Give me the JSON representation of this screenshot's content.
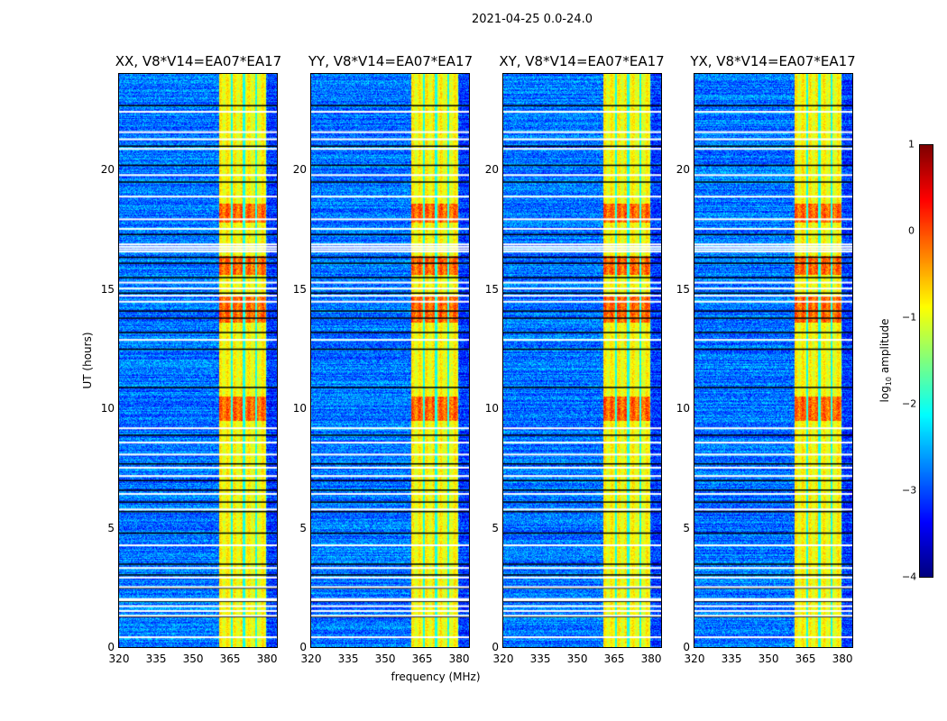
{
  "chart_data": {
    "type": "heatmap",
    "suptitle": "2021-04-25 0.0-24.0",
    "panels": [
      {
        "title": "XX, V8*V14=EA07*EA17"
      },
      {
        "title": "YY, V8*V14=EA07*EA17"
      },
      {
        "title": "XY, V8*V14=EA07*EA17"
      },
      {
        "title": "YX, V8*V14=EA07*EA17"
      }
    ],
    "xlabel": "frequency (MHz)",
    "ylabel": "UT (hours)",
    "xlim": [
      320,
      384
    ],
    "ylim": [
      0,
      24
    ],
    "xticks": [
      320,
      335,
      350,
      365,
      380
    ],
    "yticks": [
      0,
      5,
      10,
      15,
      20
    ],
    "colorbar": {
      "label_main": "log",
      "label_sub": "10",
      "label_tail": " amplitude",
      "range": [
        -4,
        1
      ],
      "ticks": [
        1,
        0,
        -1,
        -2,
        -3,
        -4
      ],
      "tick_labels": [
        "1",
        "0",
        "−1",
        "−2",
        "−3",
        "−4"
      ],
      "colormap": "jet"
    },
    "background_level": -2.8,
    "rfi_band_mhz": [
      360.5,
      379.5
    ],
    "rfi_band_gaps_mhz": [
      365.5,
      370.5,
      375.5
    ],
    "rfi_level": -0.9,
    "strong_rfi_hours": [
      [
        9.5,
        10.5
      ],
      [
        13.6,
        14.7
      ],
      [
        15.6,
        16.4
      ],
      [
        17.8,
        18.6
      ]
    ],
    "flagged_white_hours": [
      0.45,
      1.35,
      1.55,
      1.75,
      2.0,
      2.05,
      2.55,
      2.95,
      3.35,
      4.3,
      5.8,
      6.45,
      7.2,
      7.55,
      8.1,
      8.6,
      9.2,
      12.9,
      14.5,
      14.75,
      15.05,
      15.3,
      16.6,
      16.7,
      16.8,
      16.9,
      17.55,
      17.95,
      18.9,
      19.8,
      20.9,
      21.3,
      21.6,
      22.45
    ],
    "flagged_black_hours": [
      1.3,
      1.95,
      2.5,
      3.05,
      3.5,
      4.8,
      5.7,
      6.1,
      6.6,
      7.0,
      7.7,
      8.9,
      10.9,
      12.5,
      13.2,
      13.8,
      14.1,
      14.85,
      15.5,
      16.1,
      16.35,
      17.3,
      19.5,
      20.2,
      21.0,
      22.7
    ]
  }
}
